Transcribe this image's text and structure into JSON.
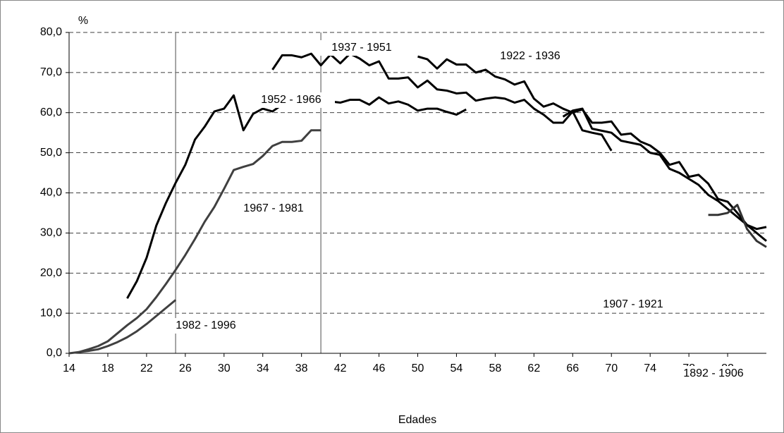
{
  "chart_data": {
    "type": "line",
    "y_label": "%",
    "x_label": "Edades",
    "xlim": [
      14,
      86
    ],
    "xticks": [
      14,
      18,
      22,
      26,
      30,
      34,
      38,
      42,
      46,
      50,
      54,
      58,
      62,
      66,
      70,
      74,
      78,
      82
    ],
    "ylim": [
      0,
      80
    ],
    "yticks": [
      {
        "value": 0,
        "label": "0,0"
      },
      {
        "value": 10,
        "label": "10,0"
      },
      {
        "value": 20,
        "label": "20,0"
      },
      {
        "value": 30,
        "label": "30,0"
      },
      {
        "value": 40,
        "label": "40,0"
      },
      {
        "value": 50,
        "label": "50,0"
      },
      {
        "value": 60,
        "label": "60,0"
      },
      {
        "value": 70,
        "label": "70,0"
      },
      {
        "value": 80,
        "label": "80,0"
      }
    ],
    "grid": true,
    "reference_lines": [
      25,
      40
    ],
    "series": [
      {
        "name": "1982 - 1996",
        "color": "#404040",
        "x": [
          14,
          15,
          16,
          17,
          18,
          19,
          20,
          21,
          22,
          23,
          24,
          25
        ],
        "values": [
          0,
          0.3,
          0.6,
          1.0,
          1.8,
          2.8,
          4.0,
          5.5,
          7.3,
          9.3,
          11.3,
          13.3
        ]
      },
      {
        "name": "1967 - 1981",
        "color": "#404040",
        "x": [
          15,
          16,
          17,
          18,
          19,
          20,
          21,
          22,
          23,
          24,
          25,
          26,
          27,
          28,
          29,
          30,
          31,
          32,
          33,
          34,
          35,
          36,
          37,
          38,
          39,
          40
        ],
        "values": [
          0.3,
          1.0,
          1.8,
          3.0,
          5.0,
          7.0,
          8.8,
          11.0,
          14.0,
          17.3,
          20.8,
          24.5,
          28.5,
          32.8,
          36.5,
          41.0,
          45.7,
          46.5,
          47.2,
          49.2,
          51.7,
          52.7,
          52.7,
          53.0,
          55.6,
          55.6
        ]
      },
      {
        "name": "1952 - 1966",
        "color": "#000000",
        "x": [
          20,
          21,
          22,
          23,
          24,
          25,
          26,
          27,
          28,
          29,
          30,
          31,
          32,
          33,
          34,
          35,
          36,
          37,
          38,
          39,
          40,
          41,
          42,
          43,
          44,
          45,
          46,
          47,
          48,
          49,
          50,
          51,
          52,
          53,
          54,
          55
        ],
        "values": [
          13.7,
          18,
          23.8,
          31.8,
          37.5,
          42.5,
          47,
          53.3,
          56.5,
          60.3,
          61,
          64.3,
          55.6,
          59.7,
          61,
          60.3,
          62,
          62,
          63,
          63.8,
          61.8,
          62.8,
          62.5,
          63.2,
          63.2,
          62,
          63.8,
          62.3,
          62.8,
          62,
          60.5,
          61,
          61,
          60.2,
          59.5,
          60.8
        ]
      },
      {
        "name": "1937 - 1951",
        "color": "#000000",
        "x": [
          35,
          36,
          37,
          38,
          39,
          40,
          41,
          42,
          43,
          44,
          45,
          46,
          47,
          48,
          49,
          50,
          51,
          52,
          53,
          54,
          55,
          56,
          57,
          58,
          59,
          60,
          61,
          62,
          63,
          64,
          65,
          66,
          67,
          68,
          69,
          70
        ],
        "values": [
          70.7,
          74.3,
          74.3,
          73.8,
          74.7,
          71.8,
          74.5,
          72.3,
          74.7,
          73.5,
          71.8,
          72.8,
          68.5,
          68.5,
          68.8,
          66.3,
          68,
          65.8,
          65.5,
          64.8,
          65,
          63,
          63.5,
          63.8,
          63.5,
          62.5,
          63.2,
          61,
          59.5,
          57.5,
          57.5,
          60.3,
          55.6,
          55,
          54.5,
          50.5
        ]
      },
      {
        "name": "1922 - 1936",
        "color": "#000000",
        "x": [
          50,
          51,
          52,
          53,
          54,
          55,
          56,
          57,
          58,
          59,
          60,
          61,
          62,
          63,
          64,
          65,
          66,
          67,
          68,
          69,
          70,
          71,
          72,
          73,
          74,
          75,
          76,
          77,
          78,
          79,
          80,
          81,
          82,
          83,
          84,
          85,
          86
        ],
        "values": [
          74,
          73.3,
          71,
          73.3,
          72,
          72,
          70,
          70.7,
          69,
          68.3,
          67,
          67.8,
          63.5,
          61.5,
          62.3,
          61,
          60,
          60.8,
          57.5,
          57.5,
          57.8,
          54.5,
          54.8,
          52.8,
          51.8,
          50,
          47,
          47.7,
          44,
          44.5,
          42.3,
          38.5,
          37.8,
          35,
          32,
          31,
          31.5
        ]
      },
      {
        "name": "1907 - 1921",
        "color": "#000000",
        "x": [
          65,
          66,
          67,
          68,
          69,
          70,
          71,
          72,
          73,
          74,
          75,
          76,
          77,
          78,
          79,
          80,
          81,
          82,
          83,
          84,
          85,
          86
        ],
        "values": [
          59,
          60.5,
          61,
          56,
          55.5,
          55,
          53,
          52.5,
          52,
          50,
          49.5,
          46,
          45,
          43.5,
          42,
          39.5,
          38,
          36,
          34,
          32,
          30,
          28
        ]
      },
      {
        "name": "1892 - 1906",
        "color": "#333333",
        "x": [
          80,
          81,
          82,
          83,
          84,
          85,
          86
        ],
        "values": [
          34.5,
          34.5,
          35,
          37,
          31,
          28,
          26.5
        ]
      }
    ]
  }
}
